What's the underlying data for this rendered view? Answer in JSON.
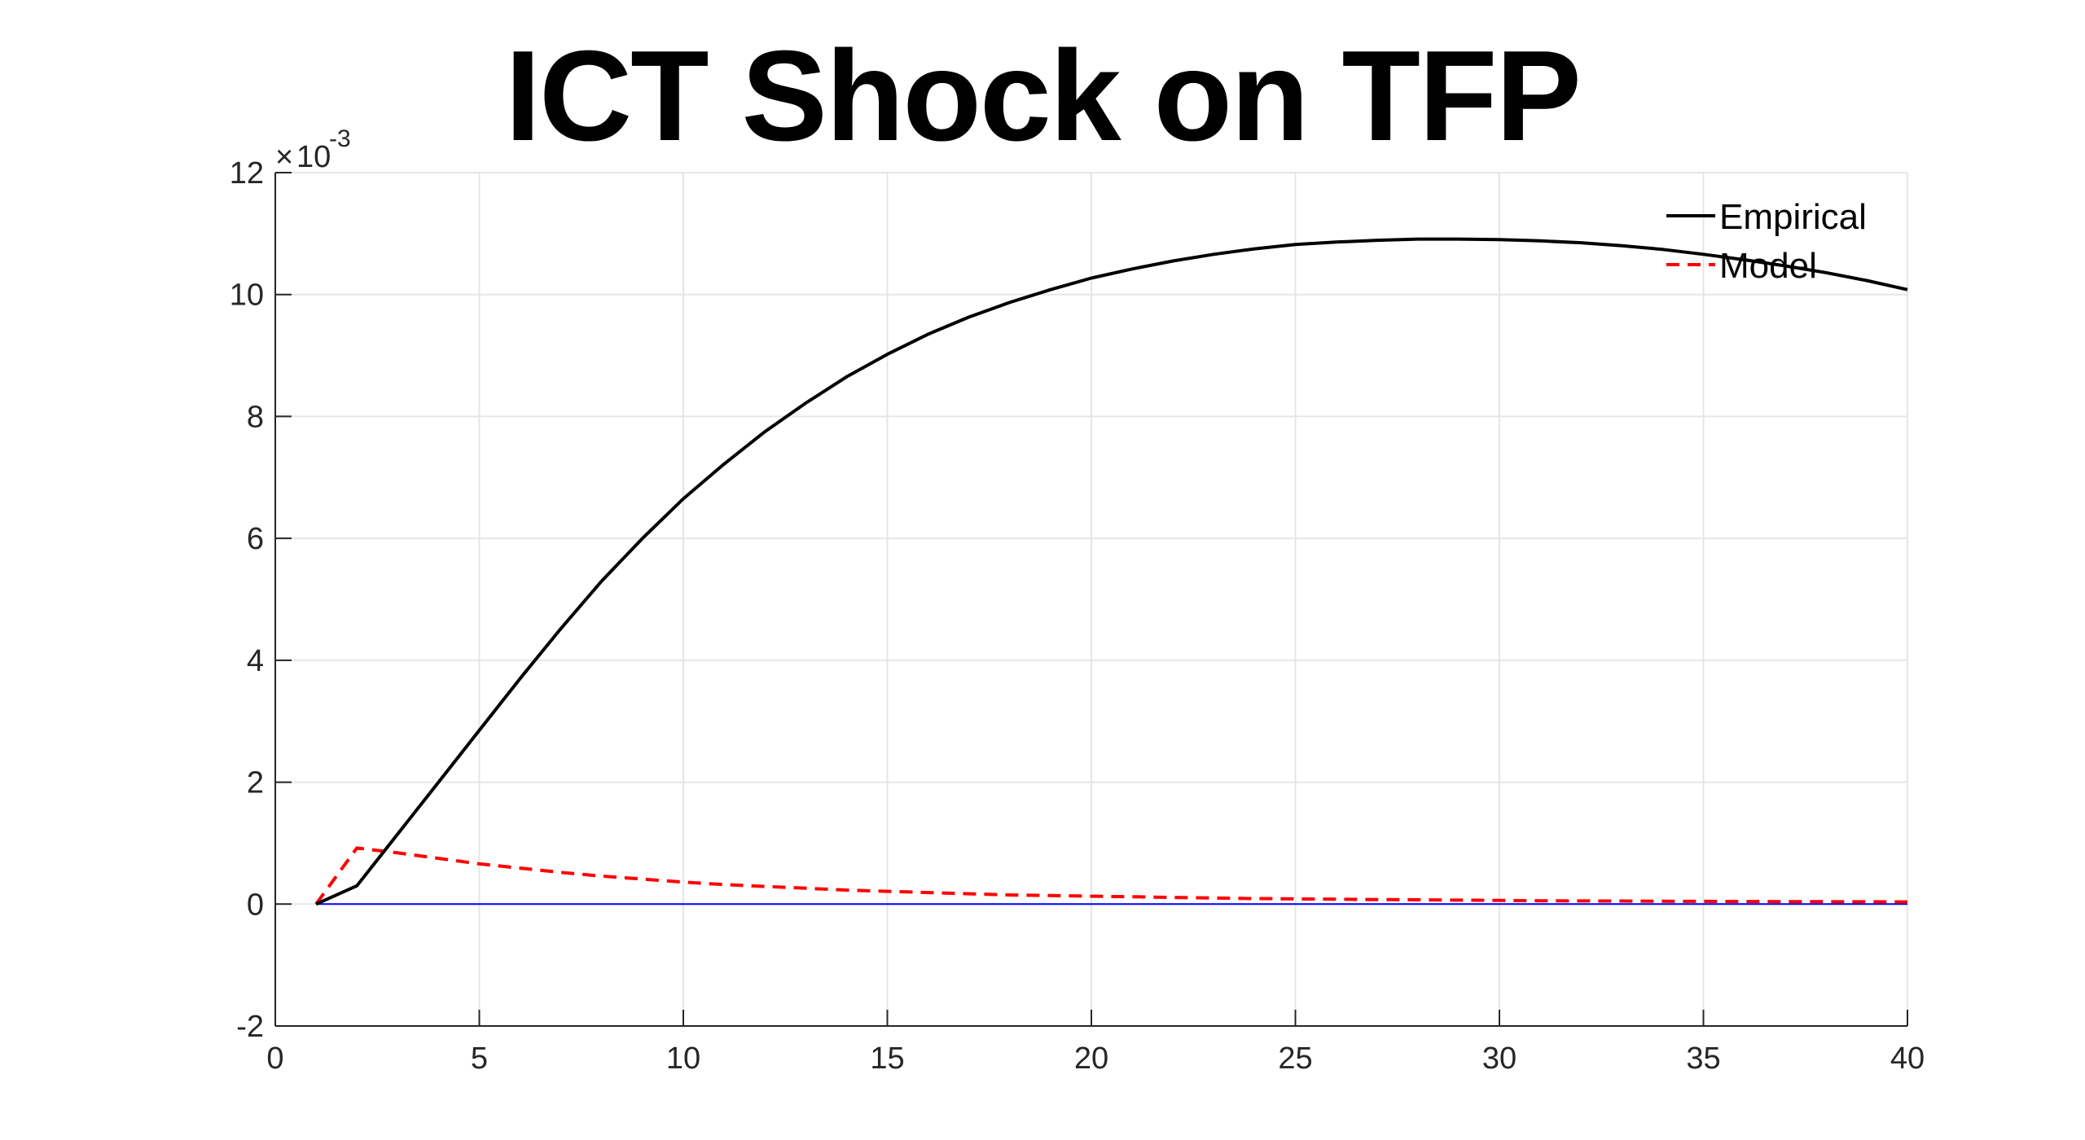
{
  "chart_data": {
    "type": "line",
    "title": "ICT Shock on TFP",
    "xlabel": "",
    "ylabel": "",
    "xlim": [
      0,
      40
    ],
    "ylim": [
      -2,
      12
    ],
    "y_exponent_label": "×10⁻³",
    "y_exponent_base": "10",
    "y_exponent_power": "-3",
    "x_ticks": [
      0,
      5,
      10,
      15,
      20,
      25,
      30,
      35,
      40
    ],
    "y_ticks": [
      -2,
      0,
      2,
      4,
      6,
      8,
      10,
      12
    ],
    "grid": true,
    "legend_position": "top-right",
    "x": [
      1,
      2,
      3,
      4,
      5,
      6,
      7,
      8,
      9,
      10,
      11,
      12,
      13,
      14,
      15,
      16,
      17,
      18,
      19,
      20,
      21,
      22,
      23,
      24,
      25,
      26,
      27,
      28,
      29,
      30,
      31,
      32,
      33,
      34,
      35,
      36,
      37,
      38,
      39,
      40
    ],
    "series": [
      {
        "name": "Empirical",
        "color": "#000000",
        "style": "solid",
        "values": [
          0.0,
          0.3,
          1.15,
          2.0,
          2.85,
          3.7,
          4.52,
          5.3,
          6.0,
          6.65,
          7.22,
          7.75,
          8.22,
          8.65,
          9.02,
          9.35,
          9.63,
          9.87,
          10.08,
          10.27,
          10.42,
          10.55,
          10.66,
          10.75,
          10.82,
          10.86,
          10.89,
          10.91,
          10.91,
          10.9,
          10.88,
          10.85,
          10.8,
          10.74,
          10.66,
          10.57,
          10.47,
          10.36,
          10.23,
          10.08
        ]
      },
      {
        "name": "Model",
        "color": "#ff0000",
        "style": "dashed",
        "values": [
          0.0,
          0.92,
          0.84,
          0.75,
          0.66,
          0.59,
          0.52,
          0.46,
          0.41,
          0.36,
          0.32,
          0.29,
          0.26,
          0.23,
          0.21,
          0.19,
          0.17,
          0.15,
          0.14,
          0.13,
          0.12,
          0.11,
          0.1,
          0.09,
          0.085,
          0.08,
          0.075,
          0.07,
          0.065,
          0.06,
          0.055,
          0.052,
          0.05,
          0.047,
          0.045,
          0.043,
          0.041,
          0.04,
          0.038,
          0.036
        ]
      },
      {
        "name": "",
        "color": "#0000ff",
        "style": "solid",
        "values": [
          0,
          0,
          0,
          0,
          0,
          0,
          0,
          0,
          0,
          0,
          0,
          0,
          0,
          0,
          0,
          0,
          0,
          0,
          0,
          0,
          0,
          0,
          0,
          0,
          0,
          0,
          0,
          0,
          0,
          0,
          0,
          0,
          0,
          0,
          0,
          0,
          0,
          0,
          0,
          0
        ]
      }
    ]
  }
}
